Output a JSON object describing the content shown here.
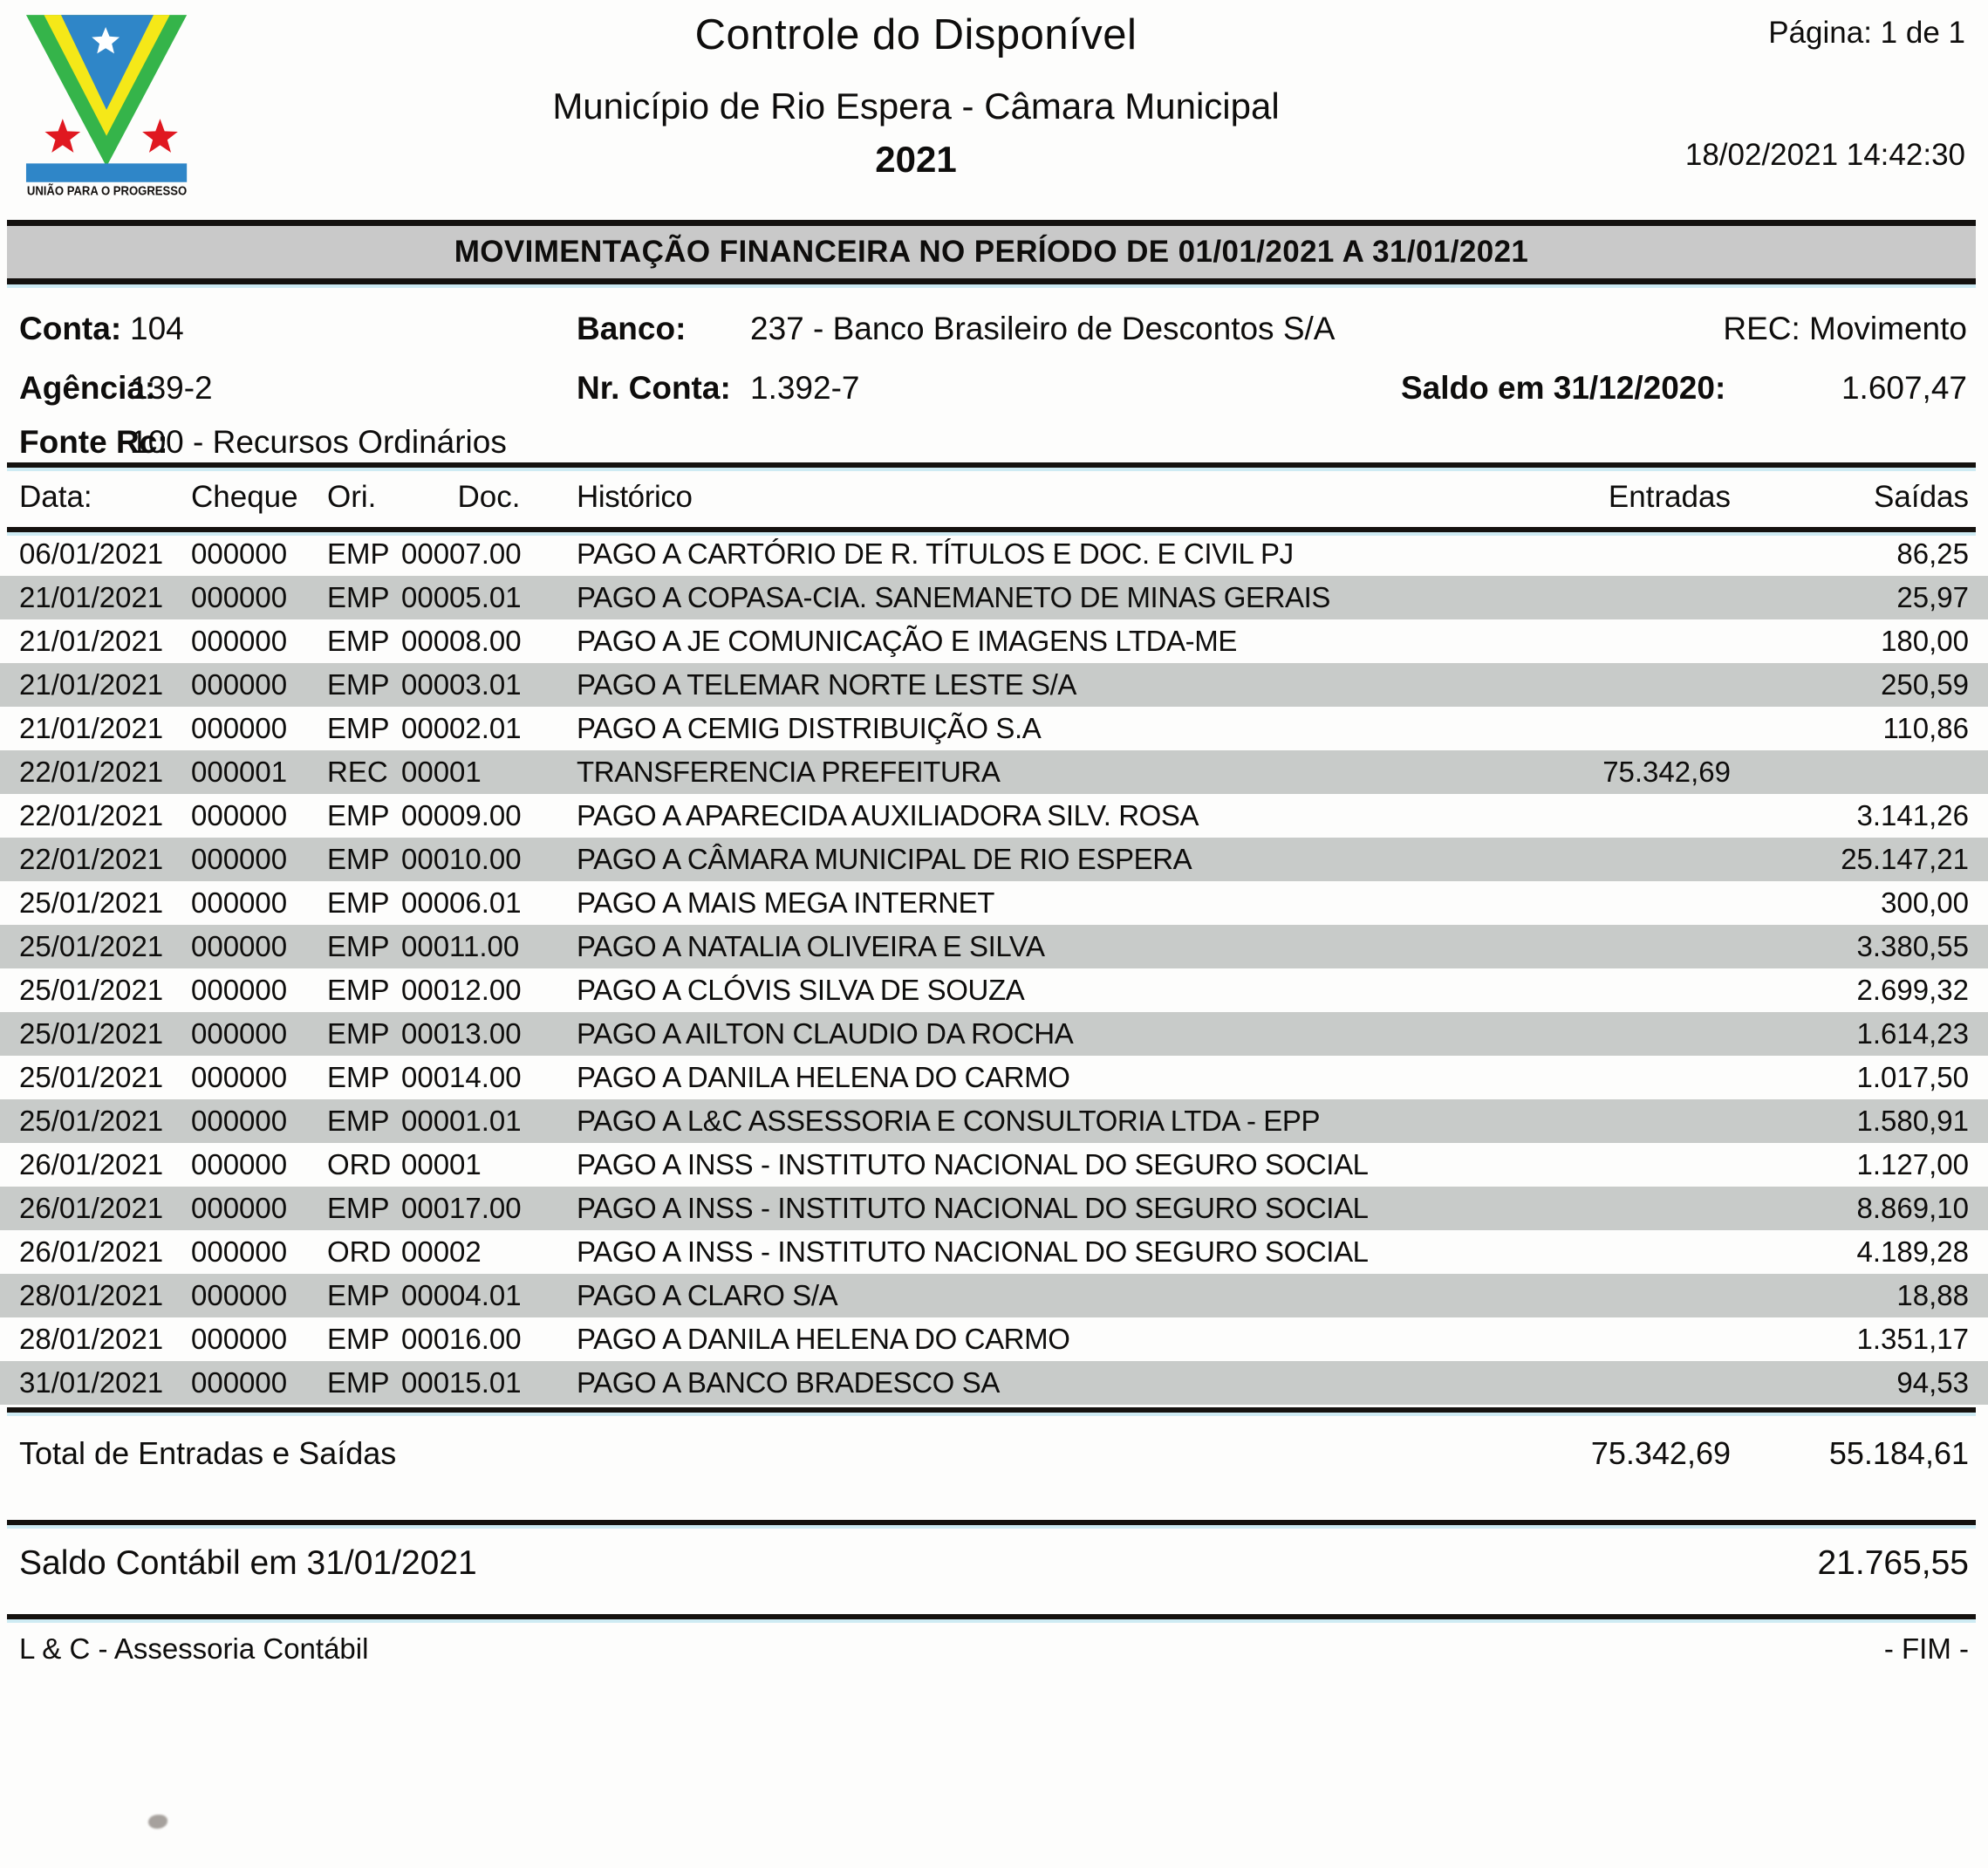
{
  "colors": {
    "banner_gray": "#c9c9c9",
    "stripe_gray": "#c8cbc9",
    "logo_blue": "#2f86c8",
    "logo_green": "#35b44a",
    "logo_yellow": "#f5e818",
    "logo_red": "#e01820"
  },
  "header": {
    "title": "Controle do Disponível",
    "subtitle": "Município de Rio Espera - Câmara Municipal",
    "year": "2021",
    "page_label": "Página: 1 de 1",
    "printed_at": "18/02/2021 14:42:30"
  },
  "logo": {
    "motto": "UNIÃO PARA O PROGRESSO"
  },
  "banner": {
    "text": "MOVIMENTAÇÃO FINANCEIRA NO PERÍODO DE 01/01/2021 A 31/01/2021"
  },
  "account": {
    "conta_label": "Conta:",
    "conta_value": "104",
    "banco_label": "Banco:",
    "banco_value": "237 - Banco Brasileiro de Descontos S/A",
    "rec_line": "REC: Movimento",
    "agencia_label": "Agência:",
    "agencia_value": "139-2",
    "nr_conta_label": "Nr. Conta:",
    "nr_conta_value": "1.392-7",
    "saldo_anterior_label": "Saldo em 31/12/2020:",
    "saldo_anterior_value": "1.607,47",
    "fonte_label": "Fonte Rc:",
    "fonte_value": "100 - Recursos Ordinários"
  },
  "table": {
    "columns": [
      "Data:",
      "Cheque",
      "Ori.",
      "Doc.",
      "Histórico",
      "Entradas",
      "Saídas"
    ],
    "rows": [
      {
        "data": "06/01/2021",
        "cheque": "000000",
        "ori": "EMP",
        "doc": "00007.00",
        "historico": "PAGO A CARTÓRIO DE R. TÍTULOS E DOC. E CIVIL PJ",
        "entradas": "",
        "saidas": "86,25"
      },
      {
        "data": "21/01/2021",
        "cheque": "000000",
        "ori": "EMP",
        "doc": "00005.01",
        "historico": "PAGO A COPASA-CIA. SANEMANETO DE MINAS GERAIS",
        "entradas": "",
        "saidas": "25,97"
      },
      {
        "data": "21/01/2021",
        "cheque": "000000",
        "ori": "EMP",
        "doc": "00008.00",
        "historico": "PAGO A JE COMUNICAÇÃO E IMAGENS LTDA-ME",
        "entradas": "",
        "saidas": "180,00"
      },
      {
        "data": "21/01/2021",
        "cheque": "000000",
        "ori": "EMP",
        "doc": "00003.01",
        "historico": "PAGO A TELEMAR NORTE LESTE S/A",
        "entradas": "",
        "saidas": "250,59"
      },
      {
        "data": "21/01/2021",
        "cheque": "000000",
        "ori": "EMP",
        "doc": "00002.01",
        "historico": "PAGO A CEMIG DISTRIBUIÇÃO S.A",
        "entradas": "",
        "saidas": "110,86"
      },
      {
        "data": "22/01/2021",
        "cheque": "000001",
        "ori": "REC",
        "doc": "00001",
        "historico": "TRANSFERENCIA PREFEITURA",
        "entradas": "75.342,69",
        "saidas": ""
      },
      {
        "data": "22/01/2021",
        "cheque": "000000",
        "ori": "EMP",
        "doc": "00009.00",
        "historico": "PAGO A APARECIDA AUXILIADORA SILV. ROSA",
        "entradas": "",
        "saidas": "3.141,26"
      },
      {
        "data": "22/01/2021",
        "cheque": "000000",
        "ori": "EMP",
        "doc": "00010.00",
        "historico": "PAGO A CÂMARA MUNICIPAL DE RIO ESPERA",
        "entradas": "",
        "saidas": "25.147,21"
      },
      {
        "data": "25/01/2021",
        "cheque": "000000",
        "ori": "EMP",
        "doc": "00006.01",
        "historico": "PAGO A MAIS MEGA INTERNET",
        "entradas": "",
        "saidas": "300,00"
      },
      {
        "data": "25/01/2021",
        "cheque": "000000",
        "ori": "EMP",
        "doc": "00011.00",
        "historico": "PAGO A NATALIA OLIVEIRA E SILVA",
        "entradas": "",
        "saidas": "3.380,55"
      },
      {
        "data": "25/01/2021",
        "cheque": "000000",
        "ori": "EMP",
        "doc": "00012.00",
        "historico": "PAGO A CLÓVIS SILVA DE SOUZA",
        "entradas": "",
        "saidas": "2.699,32"
      },
      {
        "data": "25/01/2021",
        "cheque": "000000",
        "ori": "EMP",
        "doc": "00013.00",
        "historico": "PAGO A AILTON CLAUDIO DA ROCHA",
        "entradas": "",
        "saidas": "1.614,23"
      },
      {
        "data": "25/01/2021",
        "cheque": "000000",
        "ori": "EMP",
        "doc": "00014.00",
        "historico": "PAGO A DANILA HELENA DO CARMO",
        "entradas": "",
        "saidas": "1.017,50"
      },
      {
        "data": "25/01/2021",
        "cheque": "000000",
        "ori": "EMP",
        "doc": "00001.01",
        "historico": "PAGO A L&C ASSESSORIA E CONSULTORIA LTDA - EPP",
        "entradas": "",
        "saidas": "1.580,91"
      },
      {
        "data": "26/01/2021",
        "cheque": "000000",
        "ori": "ORD",
        "doc": "00001",
        "historico": "PAGO A INSS - INSTITUTO NACIONAL DO SEGURO SOCIAL",
        "entradas": "",
        "saidas": "1.127,00"
      },
      {
        "data": "26/01/2021",
        "cheque": "000000",
        "ori": "EMP",
        "doc": "00017.00",
        "historico": "PAGO A INSS - INSTITUTO NACIONAL DO SEGURO SOCIAL",
        "entradas": "",
        "saidas": "8.869,10"
      },
      {
        "data": "26/01/2021",
        "cheque": "000000",
        "ori": "ORD",
        "doc": "00002",
        "historico": "PAGO A INSS - INSTITUTO NACIONAL DO SEGURO SOCIAL",
        "entradas": "",
        "saidas": "4.189,28"
      },
      {
        "data": "28/01/2021",
        "cheque": "000000",
        "ori": "EMP",
        "doc": "00004.01",
        "historico": "PAGO A CLARO S/A",
        "entradas": "",
        "saidas": "18,88"
      },
      {
        "data": "28/01/2021",
        "cheque": "000000",
        "ori": "EMP",
        "doc": "00016.00",
        "historico": "PAGO A DANILA HELENA DO CARMO",
        "entradas": "",
        "saidas": "1.351,17"
      },
      {
        "data": "31/01/2021",
        "cheque": "000000",
        "ori": "EMP",
        "doc": "00015.01",
        "historico": "PAGO A BANCO BRADESCO SA",
        "entradas": "",
        "saidas": "94,53"
      }
    ]
  },
  "totals": {
    "label": "Total de Entradas e Saídas",
    "entradas": "75.342,69",
    "saidas": "55.184,61"
  },
  "saldo": {
    "label": "Saldo Contábil em 31/01/2021",
    "value": "21.765,55"
  },
  "footer": {
    "left": "L & C - Assessoria Contábil",
    "right": "- FIM -"
  }
}
